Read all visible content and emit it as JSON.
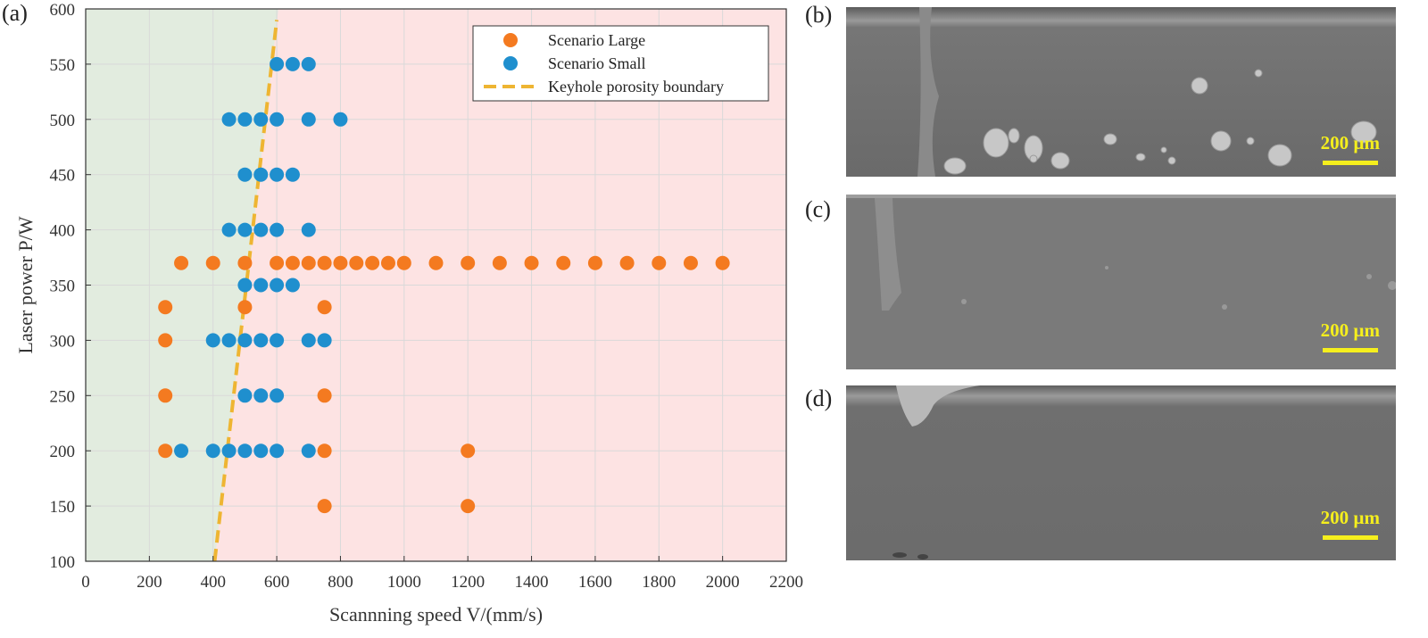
{
  "panel_labels": {
    "a": "(a)",
    "b": "(b)",
    "c": "(c)",
    "d": "(d)"
  },
  "micrographs": [
    {
      "label": "(b)",
      "scale_bar": "200 µm",
      "porosity": "high"
    },
    {
      "label": "(c)",
      "scale_bar": "200 µm",
      "porosity": "low"
    },
    {
      "label": "(d)",
      "scale_bar": "200 µm",
      "porosity": "none"
    }
  ],
  "colors": {
    "large": "#f47a20",
    "small": "#1f8fce",
    "boundary": "#eeb532",
    "region_left": "#e2ecdf",
    "region_right": "#fde3e3"
  },
  "chart_data": {
    "type": "scatter",
    "xlabel": "Scannning speed V/(mm/s)",
    "ylabel": "Laser power P/W",
    "xlim": [
      0,
      2200
    ],
    "ylim": [
      100,
      600
    ],
    "xticks": [
      0,
      200,
      400,
      600,
      800,
      1000,
      1200,
      1400,
      1600,
      1800,
      2000,
      2200
    ],
    "yticks": [
      100,
      150,
      200,
      250,
      300,
      350,
      400,
      450,
      500,
      550,
      600
    ],
    "grid": true,
    "legend": "top-right",
    "series": [
      {
        "name": "Scenario Large",
        "marker": "circle",
        "color": "#f47a20",
        "points": [
          [
            300,
            370
          ],
          [
            400,
            370
          ],
          [
            500,
            370
          ],
          [
            600,
            370
          ],
          [
            650,
            370
          ],
          [
            700,
            370
          ],
          [
            750,
            370
          ],
          [
            800,
            370
          ],
          [
            850,
            370
          ],
          [
            900,
            370
          ],
          [
            950,
            370
          ],
          [
            1000,
            370
          ],
          [
            1100,
            370
          ],
          [
            1200,
            370
          ],
          [
            1300,
            370
          ],
          [
            1400,
            370
          ],
          [
            1500,
            370
          ],
          [
            1600,
            370
          ],
          [
            1700,
            370
          ],
          [
            1800,
            370
          ],
          [
            1900,
            370
          ],
          [
            2000,
            370
          ],
          [
            250,
            330
          ],
          [
            500,
            330
          ],
          [
            750,
            330
          ],
          [
            250,
            300
          ],
          [
            250,
            250
          ],
          [
            750,
            250
          ],
          [
            250,
            200
          ],
          [
            750,
            200
          ],
          [
            1200,
            200
          ],
          [
            750,
            150
          ],
          [
            1200,
            150
          ]
        ]
      },
      {
        "name": "Scenario Small",
        "marker": "circle",
        "color": "#1f8fce",
        "points": [
          [
            600,
            550
          ],
          [
            650,
            550
          ],
          [
            700,
            550
          ],
          [
            450,
            500
          ],
          [
            500,
            500
          ],
          [
            550,
            500
          ],
          [
            600,
            500
          ],
          [
            700,
            500
          ],
          [
            800,
            500
          ],
          [
            500,
            450
          ],
          [
            550,
            450
          ],
          [
            600,
            450
          ],
          [
            650,
            450
          ],
          [
            450,
            400
          ],
          [
            500,
            400
          ],
          [
            550,
            400
          ],
          [
            600,
            400
          ],
          [
            700,
            400
          ],
          [
            500,
            350
          ],
          [
            550,
            350
          ],
          [
            600,
            350
          ],
          [
            650,
            350
          ],
          [
            400,
            300
          ],
          [
            450,
            300
          ],
          [
            500,
            300
          ],
          [
            550,
            300
          ],
          [
            600,
            300
          ],
          [
            700,
            300
          ],
          [
            750,
            300
          ],
          [
            500,
            250
          ],
          [
            550,
            250
          ],
          [
            600,
            250
          ],
          [
            300,
            200
          ],
          [
            400,
            200
          ],
          [
            450,
            200
          ],
          [
            500,
            200
          ],
          [
            550,
            200
          ],
          [
            600,
            200
          ],
          [
            700,
            200
          ]
        ]
      },
      {
        "name": "Keyhole porosity boundary",
        "type": "line",
        "style": "dashed",
        "color": "#eeb532",
        "points": [
          [
            405,
            100
          ],
          [
            600,
            590
          ]
        ]
      }
    ],
    "regions": [
      {
        "x_bottom": 405,
        "x_top": 605,
        "side": "left",
        "color": "#e2ecdf"
      },
      {
        "side": "right",
        "color": "#fde3e3"
      }
    ]
  }
}
